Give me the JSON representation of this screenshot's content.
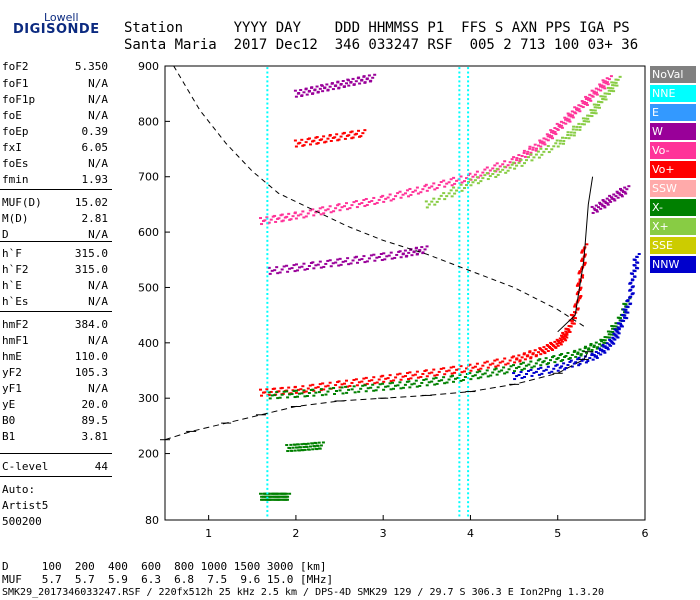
{
  "logo": {
    "line1": "Lowell",
    "line2": "DIGISONDE"
  },
  "header": {
    "row1": "Station      YYYY DAY    DDD HHMMSS P1  FFS S AXN PPS IGA PS",
    "row2": "Santa Maria  2017 Dec12  346 033247 RSF  005 2 713 100 03+ 36"
  },
  "params": [
    {
      "label": "foF2",
      "value": "5.350"
    },
    {
      "label": "foF1",
      "value": "N/A"
    },
    {
      "label": "foF1p",
      "value": "N/A"
    },
    {
      "label": "foE",
      "value": "N/A"
    },
    {
      "label": "foEp",
      "value": "0.39"
    },
    {
      "label": "fxI",
      "value": "6.05"
    },
    {
      "label": "foEs",
      "value": "N/A"
    },
    {
      "label": "fmin",
      "value": "1.93"
    },
    {
      "label": "MUF(D)",
      "value": "15.02"
    },
    {
      "label": "M(D)",
      "value": "2.81"
    },
    {
      "label": "D",
      "value": "N/A"
    },
    {
      "label": "h`F",
      "value": "315.0"
    },
    {
      "label": "h`F2",
      "value": "315.0"
    },
    {
      "label": "h`E",
      "value": "N/A"
    },
    {
      "label": "h`Es",
      "value": "N/A"
    },
    {
      "label": "hmF2",
      "value": "384.0"
    },
    {
      "label": "hmF1",
      "value": "N/A"
    },
    {
      "label": "hmE",
      "value": "110.0"
    },
    {
      "label": "yF2",
      "value": "105.3"
    },
    {
      "label": "yF1",
      "value": "N/A"
    },
    {
      "label": "yE",
      "value": "20.0"
    },
    {
      "label": "B0",
      "value": "89.5"
    },
    {
      "label": "B1",
      "value": "3.81"
    },
    {
      "label": "C-level",
      "value": "44"
    }
  ],
  "auto": {
    "line1": "Auto:",
    "line2": "Artist5",
    "line3": "500200"
  },
  "legend": [
    {
      "label": "NoVal",
      "color": "#808080"
    },
    {
      "label": "NNE",
      "color": "#00ffff"
    },
    {
      "label": "E",
      "color": "#3399ff"
    },
    {
      "label": "W",
      "color": "#990099"
    },
    {
      "label": "Vo-",
      "color": "#ff3399"
    },
    {
      "label": "Vo+",
      "color": "#ff0000"
    },
    {
      "label": "SSW",
      "color": "#ffaaaa"
    },
    {
      "label": "X-",
      "color": "#008000"
    },
    {
      "label": "X+",
      "color": "#88cc44"
    },
    {
      "label": "SSE",
      "color": "#cccc00"
    },
    {
      "label": "NNW",
      "color": "#0000cc"
    }
  ],
  "footer": {
    "d_row": "D     100  200  400  600  800 1000 1500 3000 [km]",
    "muf_row": "MUF   5.7  5.7  5.9  6.3  6.8  7.5  9.6 15.0 [MHz]",
    "info_row": "SMK29_2017346033247.RSF / 220fx512h 25 kHz 2.5 km / DPS-4D SMK29 129 / 29.7 S 306.3 E Ion2Png 1.3.20"
  },
  "chart_data": {
    "type": "scatter",
    "x_range": [
      0.5,
      6.0
    ],
    "y_range": [
      80,
      900
    ],
    "x_ticks": [
      1,
      2,
      3,
      4,
      5,
      6
    ],
    "y_ticks": [
      80,
      200,
      300,
      400,
      500,
      600,
      700,
      800,
      900
    ],
    "series": [
      {
        "color": "#ff0000",
        "points": [
          [
            1.6,
            310
          ],
          [
            2.0,
            315
          ],
          [
            2.5,
            325
          ],
          [
            3.0,
            335
          ],
          [
            3.5,
            345
          ],
          [
            4.0,
            355
          ],
          [
            4.5,
            370
          ],
          [
            4.8,
            385
          ],
          [
            5.0,
            400
          ],
          [
            5.1,
            420
          ],
          [
            5.2,
            460
          ],
          [
            5.25,
            520
          ],
          [
            5.3,
            580
          ]
        ]
      },
      {
        "color": "#008000",
        "points": [
          [
            1.7,
            305
          ],
          [
            2.2,
            310
          ],
          [
            2.8,
            318
          ],
          [
            3.3,
            325
          ],
          [
            3.8,
            335
          ],
          [
            4.3,
            348
          ],
          [
            4.8,
            365
          ],
          [
            5.2,
            380
          ],
          [
            5.5,
            400
          ],
          [
            5.7,
            440
          ],
          [
            5.8,
            480
          ]
        ]
      },
      {
        "color": "#0000cc",
        "points": [
          [
            4.5,
            340
          ],
          [
            5.0,
            355
          ],
          [
            5.4,
            375
          ],
          [
            5.6,
            400
          ],
          [
            5.7,
            430
          ],
          [
            5.8,
            470
          ],
          [
            5.85,
            520
          ],
          [
            5.9,
            560
          ]
        ]
      },
      {
        "color": "#ff3399",
        "points": [
          [
            1.6,
            620
          ],
          [
            2.0,
            630
          ],
          [
            2.5,
            645
          ],
          [
            3.0,
            660
          ],
          [
            3.5,
            680
          ],
          [
            4.0,
            700
          ],
          [
            4.5,
            730
          ],
          [
            4.8,
            760
          ],
          [
            5.0,
            790
          ],
          [
            5.2,
            820
          ],
          [
            5.4,
            850
          ],
          [
            5.6,
            880
          ]
        ]
      },
      {
        "color": "#88cc44",
        "points": [
          [
            3.5,
            650
          ],
          [
            4.0,
            690
          ],
          [
            4.5,
            720
          ],
          [
            5.0,
            760
          ],
          [
            5.3,
            800
          ],
          [
            5.5,
            840
          ],
          [
            5.7,
            880
          ]
        ]
      },
      {
        "color": "#990099",
        "points": [
          [
            1.7,
            530
          ],
          [
            2.2,
            540
          ],
          [
            2.7,
            550
          ],
          [
            3.2,
            560
          ],
          [
            3.5,
            570
          ]
        ]
      },
      {
        "color": "#990099",
        "points": [
          [
            2.0,
            850
          ],
          [
            2.3,
            860
          ],
          [
            2.6,
            870
          ],
          [
            2.9,
            880
          ]
        ]
      },
      {
        "color": "#ff0000",
        "points": [
          [
            2.0,
            760
          ],
          [
            2.4,
            770
          ],
          [
            2.8,
            780
          ]
        ]
      },
      {
        "color": "#008000",
        "points": [
          [
            1.9,
            210
          ],
          [
            2.1,
            212
          ],
          [
            2.3,
            215
          ]
        ]
      },
      {
        "color": "#008000",
        "points": [
          [
            1.6,
            122
          ],
          [
            1.7,
            122
          ],
          [
            1.8,
            122
          ],
          [
            1.9,
            122
          ]
        ]
      },
      {
        "color": "#990099",
        "points": [
          [
            5.4,
            640
          ],
          [
            5.6,
            660
          ],
          [
            5.8,
            680
          ]
        ]
      }
    ],
    "nne_columns": [
      1.65,
      3.85,
      3.95
    ],
    "profile_curve": [
      [
        0.5,
        225
      ],
      [
        0.8,
        240
      ],
      [
        1.2,
        255
      ],
      [
        1.6,
        270
      ],
      [
        2.0,
        285
      ],
      [
        2.5,
        295
      ],
      [
        3.0,
        300
      ],
      [
        3.5,
        305
      ],
      [
        4.0,
        312
      ],
      [
        4.5,
        325
      ],
      [
        5.0,
        345
      ],
      [
        5.3,
        370
      ],
      [
        5.35,
        384
      ]
    ],
    "muf_curve": [
      [
        0.6,
        900
      ],
      [
        0.9,
        820
      ],
      [
        1.2,
        760
      ],
      [
        1.5,
        710
      ],
      [
        1.8,
        670
      ],
      [
        2.2,
        640
      ],
      [
        2.6,
        610
      ],
      [
        3.0,
        585
      ],
      [
        3.5,
        560
      ],
      [
        4.0,
        530
      ],
      [
        4.5,
        500
      ],
      [
        5.0,
        460
      ],
      [
        5.3,
        430
      ]
    ],
    "trace_line": [
      [
        5.0,
        420
      ],
      [
        5.2,
        450
      ],
      [
        5.3,
        550
      ],
      [
        5.35,
        650
      ],
      [
        5.4,
        700
      ]
    ]
  }
}
